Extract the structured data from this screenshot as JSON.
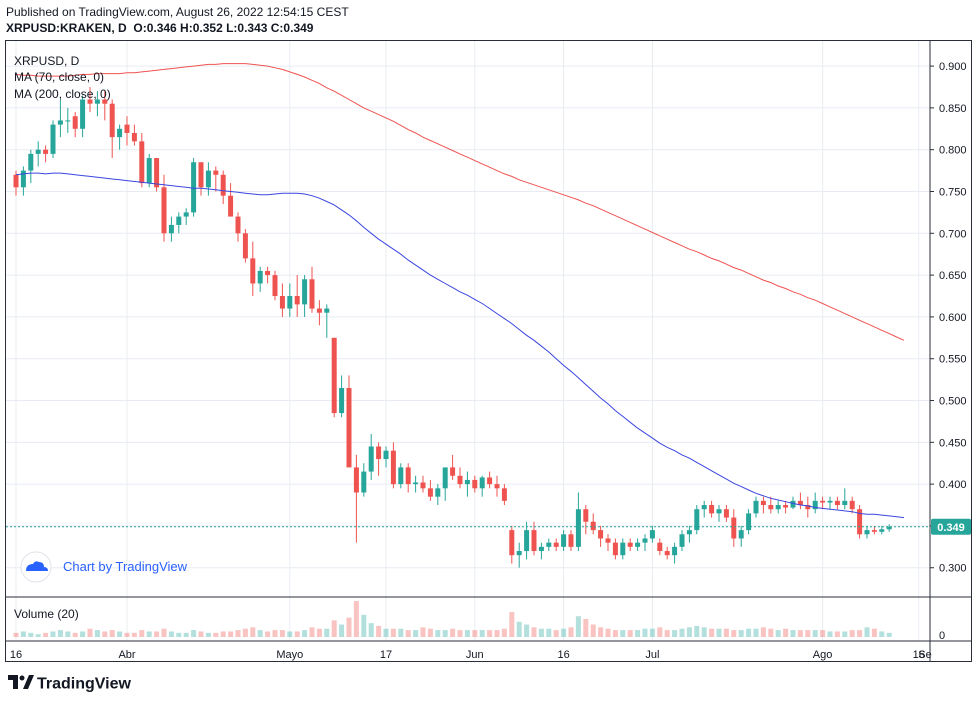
{
  "header": {
    "published": "Published on TradingView.com, August 26, 2022 12:54:15 CEST",
    "symbol": "XRPUSD:KRAKEN, D",
    "ohlc": "O:0.346 H:0.352 L:0.343 C:0.349"
  },
  "legend": {
    "title": "XRPUSD, D",
    "ma70": "MA (70, close, 0)",
    "ma200": "MA (200, close, 0)",
    "volume": "Volume (20)"
  },
  "watermark": "Chart by TradingView",
  "footer_brand": "TradingView",
  "colors": {
    "up": "#26a69a",
    "down": "#ef5350",
    "ma70": "#3a46e0",
    "ma200": "#ef5350",
    "last_price": "#26a69a",
    "grid": "#e8ecf2"
  },
  "chart_data": {
    "type": "candlestick",
    "title": "XRPUSD, D",
    "price_axis": {
      "ticks": [
        "0.900",
        "0.850",
        "0.800",
        "0.750",
        "0.700",
        "0.650",
        "0.600",
        "0.550",
        "0.500",
        "0.450",
        "0.400",
        "0.350",
        "0.300"
      ],
      "ylim": [
        0.265,
        0.93
      ],
      "last_price_label": "0.349",
      "last_price": 0.349
    },
    "volume_axis": {
      "ticks": [
        "0"
      ]
    },
    "x_axis": {
      "tick_labels": [
        "16",
        "Abr",
        "Mayo",
        "17",
        "Jun",
        "16",
        "Jul",
        "Ago",
        "16",
        "Se"
      ],
      "tick_indices": [
        0,
        15,
        37,
        50,
        62,
        74,
        86,
        109,
        122,
        135
      ]
    },
    "candles": [
      [
        0.77,
        0.775,
        0.745,
        0.755
      ],
      [
        0.755,
        0.78,
        0.745,
        0.775
      ],
      [
        0.775,
        0.8,
        0.76,
        0.795
      ],
      [
        0.795,
        0.81,
        0.78,
        0.8
      ],
      [
        0.8,
        0.805,
        0.785,
        0.795
      ],
      [
        0.795,
        0.835,
        0.79,
        0.83
      ],
      [
        0.83,
        0.86,
        0.815,
        0.835
      ],
      [
        0.835,
        0.85,
        0.82,
        0.835
      ],
      [
        0.84,
        0.845,
        0.815,
        0.825
      ],
      [
        0.825,
        0.865,
        0.815,
        0.86
      ],
      [
        0.86,
        0.875,
        0.845,
        0.855
      ],
      [
        0.855,
        0.87,
        0.84,
        0.86
      ],
      [
        0.86,
        0.87,
        0.835,
        0.855
      ],
      [
        0.855,
        0.86,
        0.79,
        0.815
      ],
      [
        0.815,
        0.83,
        0.8,
        0.825
      ],
      [
        0.83,
        0.84,
        0.805,
        0.82
      ],
      [
        0.82,
        0.83,
        0.805,
        0.81
      ],
      [
        0.81,
        0.82,
        0.755,
        0.76
      ],
      [
        0.76,
        0.795,
        0.755,
        0.79
      ],
      [
        0.79,
        0.79,
        0.75,
        0.755
      ],
      [
        0.755,
        0.77,
        0.69,
        0.7
      ],
      [
        0.7,
        0.72,
        0.69,
        0.71
      ],
      [
        0.71,
        0.725,
        0.7,
        0.72
      ],
      [
        0.72,
        0.73,
        0.71,
        0.725
      ],
      [
        0.725,
        0.79,
        0.72,
        0.785
      ],
      [
        0.785,
        0.785,
        0.745,
        0.755
      ],
      [
        0.755,
        0.785,
        0.745,
        0.775
      ],
      [
        0.775,
        0.78,
        0.75,
        0.77
      ],
      [
        0.77,
        0.775,
        0.735,
        0.745
      ],
      [
        0.745,
        0.76,
        0.72,
        0.72
      ],
      [
        0.72,
        0.725,
        0.69,
        0.7
      ],
      [
        0.7,
        0.705,
        0.665,
        0.67
      ],
      [
        0.67,
        0.69,
        0.625,
        0.64
      ],
      [
        0.64,
        0.66,
        0.63,
        0.655
      ],
      [
        0.655,
        0.66,
        0.64,
        0.65
      ],
      [
        0.65,
        0.655,
        0.62,
        0.625
      ],
      [
        0.625,
        0.64,
        0.6,
        0.61
      ],
      [
        0.61,
        0.64,
        0.6,
        0.625
      ],
      [
        0.625,
        0.65,
        0.6,
        0.615
      ],
      [
        0.615,
        0.65,
        0.6,
        0.645
      ],
      [
        0.645,
        0.66,
        0.605,
        0.61
      ],
      [
        0.61,
        0.62,
        0.59,
        0.605
      ],
      [
        0.605,
        0.615,
        0.575,
        0.61
      ],
      [
        0.575,
        0.575,
        0.48,
        0.485
      ],
      [
        0.485,
        0.53,
        0.48,
        0.515
      ],
      [
        0.515,
        0.53,
        0.42,
        0.42
      ],
      [
        0.42,
        0.435,
        0.33,
        0.39
      ],
      [
        0.39,
        0.425,
        0.385,
        0.415
      ],
      [
        0.415,
        0.46,
        0.405,
        0.445
      ],
      [
        0.445,
        0.45,
        0.41,
        0.43
      ],
      [
        0.43,
        0.445,
        0.42,
        0.44
      ],
      [
        0.44,
        0.45,
        0.395,
        0.4
      ],
      [
        0.4,
        0.425,
        0.395,
        0.42
      ],
      [
        0.42,
        0.425,
        0.39,
        0.4
      ],
      [
        0.4,
        0.41,
        0.39,
        0.402
      ],
      [
        0.402,
        0.41,
        0.39,
        0.395
      ],
      [
        0.395,
        0.405,
        0.38,
        0.385
      ],
      [
        0.385,
        0.4,
        0.375,
        0.395
      ],
      [
        0.395,
        0.415,
        0.38,
        0.42
      ],
      [
        0.42,
        0.435,
        0.405,
        0.41
      ],
      [
        0.41,
        0.42,
        0.395,
        0.4
      ],
      [
        0.4,
        0.415,
        0.385,
        0.405
      ],
      [
        0.405,
        0.41,
        0.39,
        0.395
      ],
      [
        0.395,
        0.41,
        0.385,
        0.408
      ],
      [
        0.408,
        0.415,
        0.395,
        0.4
      ],
      [
        0.4,
        0.41,
        0.385,
        0.395
      ],
      [
        0.395,
        0.4,
        0.375,
        0.38
      ],
      [
        0.345,
        0.35,
        0.305,
        0.315
      ],
      [
        0.315,
        0.33,
        0.3,
        0.32
      ],
      [
        0.32,
        0.355,
        0.31,
        0.345
      ],
      [
        0.345,
        0.355,
        0.315,
        0.32
      ],
      [
        0.32,
        0.33,
        0.31,
        0.325
      ],
      [
        0.325,
        0.335,
        0.32,
        0.33
      ],
      [
        0.33,
        0.335,
        0.32,
        0.325
      ],
      [
        0.325,
        0.345,
        0.32,
        0.34
      ],
      [
        0.34,
        0.345,
        0.32,
        0.325
      ],
      [
        0.325,
        0.39,
        0.32,
        0.37
      ],
      [
        0.37,
        0.375,
        0.34,
        0.355
      ],
      [
        0.355,
        0.365,
        0.34,
        0.345
      ],
      [
        0.345,
        0.35,
        0.325,
        0.335
      ],
      [
        0.335,
        0.34,
        0.32,
        0.33
      ],
      [
        0.33,
        0.335,
        0.31,
        0.315
      ],
      [
        0.315,
        0.335,
        0.31,
        0.33
      ],
      [
        0.33,
        0.335,
        0.32,
        0.325
      ],
      [
        0.325,
        0.335,
        0.32,
        0.33
      ],
      [
        0.33,
        0.34,
        0.32,
        0.335
      ],
      [
        0.335,
        0.35,
        0.33,
        0.345
      ],
      [
        0.33,
        0.335,
        0.315,
        0.32
      ],
      [
        0.32,
        0.325,
        0.31,
        0.315
      ],
      [
        0.315,
        0.33,
        0.305,
        0.325
      ],
      [
        0.325,
        0.345,
        0.32,
        0.34
      ],
      [
        0.34,
        0.35,
        0.33,
        0.345
      ],
      [
        0.345,
        0.375,
        0.34,
        0.37
      ],
      [
        0.37,
        0.38,
        0.36,
        0.375
      ],
      [
        0.375,
        0.38,
        0.36,
        0.365
      ],
      [
        0.365,
        0.375,
        0.355,
        0.37
      ],
      [
        0.37,
        0.375,
        0.355,
        0.36
      ],
      [
        0.36,
        0.37,
        0.325,
        0.335
      ],
      [
        0.335,
        0.35,
        0.325,
        0.345
      ],
      [
        0.345,
        0.37,
        0.34,
        0.365
      ],
      [
        0.365,
        0.385,
        0.36,
        0.38
      ],
      [
        0.38,
        0.385,
        0.365,
        0.375
      ],
      [
        0.375,
        0.385,
        0.365,
        0.37
      ],
      [
        0.37,
        0.38,
        0.365,
        0.375
      ],
      [
        0.375,
        0.38,
        0.365,
        0.372
      ],
      [
        0.372,
        0.385,
        0.37,
        0.38
      ],
      [
        0.38,
        0.39,
        0.37,
        0.375
      ],
      [
        0.375,
        0.385,
        0.36,
        0.37
      ],
      [
        0.37,
        0.39,
        0.365,
        0.38
      ],
      [
        0.38,
        0.385,
        0.37,
        0.378
      ],
      [
        0.378,
        0.385,
        0.37,
        0.38
      ],
      [
        0.38,
        0.385,
        0.37,
        0.375
      ],
      [
        0.375,
        0.395,
        0.37,
        0.38
      ],
      [
        0.38,
        0.385,
        0.365,
        0.37
      ],
      [
        0.37,
        0.375,
        0.335,
        0.34
      ],
      [
        0.34,
        0.35,
        0.335,
        0.345
      ],
      [
        0.345,
        0.35,
        0.34,
        0.343
      ],
      [
        0.343,
        0.35,
        0.34,
        0.346
      ],
      [
        0.346,
        0.352,
        0.343,
        0.349
      ]
    ],
    "volume": [
      3,
      4,
      3,
      2,
      3,
      4,
      5,
      4,
      3,
      4,
      6,
      5,
      4,
      5,
      4,
      3,
      3,
      5,
      4,
      4,
      6,
      4,
      3,
      3,
      5,
      4,
      3,
      3,
      4,
      4,
      5,
      6,
      7,
      5,
      4,
      5,
      5,
      4,
      4,
      5,
      7,
      6,
      6,
      12,
      9,
      14,
      26,
      16,
      10,
      8,
      6,
      6,
      6,
      5,
      5,
      7,
      6,
      5,
      5,
      6,
      5,
      5,
      5,
      5,
      5,
      5,
      6,
      18,
      11,
      9,
      7,
      6,
      6,
      5,
      6,
      7,
      15,
      13,
      9,
      7,
      6,
      5,
      5,
      5,
      5,
      6,
      6,
      7,
      5,
      5,
      6,
      7,
      8,
      7,
      6,
      6,
      6,
      5,
      5,
      6,
      6,
      7,
      6,
      5,
      6,
      5,
      5,
      5,
      5,
      5,
      4,
      4,
      4,
      5,
      5,
      7,
      6,
      4,
      3,
      3,
      3
    ],
    "series": [
      {
        "name": "MA (70, close, 0)",
        "values": [
          0.77,
          0.771,
          0.772,
          0.772,
          0.771,
          0.772,
          0.772,
          0.771,
          0.77,
          0.769,
          0.768,
          0.767,
          0.766,
          0.765,
          0.764,
          0.763,
          0.762,
          0.761,
          0.76,
          0.759,
          0.758,
          0.757,
          0.756,
          0.755,
          0.754,
          0.754,
          0.753,
          0.752,
          0.751,
          0.75,
          0.749,
          0.748,
          0.747,
          0.746,
          0.746,
          0.747,
          0.748,
          0.748,
          0.748,
          0.747,
          0.745,
          0.742,
          0.738,
          0.734,
          0.728,
          0.722,
          0.715,
          0.707,
          0.7,
          0.693,
          0.687,
          0.681,
          0.675,
          0.668,
          0.662,
          0.656,
          0.65,
          0.645,
          0.64,
          0.635,
          0.63,
          0.626,
          0.621,
          0.616,
          0.61,
          0.604,
          0.598,
          0.592,
          0.585,
          0.578,
          0.572,
          0.565,
          0.558,
          0.55,
          0.542,
          0.535,
          0.527,
          0.519,
          0.511,
          0.503,
          0.496,
          0.488,
          0.481,
          0.474,
          0.467,
          0.461,
          0.455,
          0.449,
          0.444,
          0.44,
          0.435,
          0.431,
          0.426,
          0.421,
          0.416,
          0.411,
          0.406,
          0.401,
          0.397,
          0.393,
          0.389,
          0.386,
          0.383,
          0.381,
          0.379,
          0.377,
          0.375,
          0.374,
          0.372,
          0.371,
          0.37,
          0.369,
          0.368,
          0.367,
          0.365,
          0.364,
          0.364,
          0.363,
          0.362,
          0.361,
          0.36
        ]
      },
      {
        "name": "MA (200, close, 0)",
        "values": [
          0.89,
          0.889,
          0.889,
          0.888,
          0.888,
          0.888,
          0.888,
          0.888,
          0.889,
          0.89,
          0.89,
          0.891,
          0.891,
          0.891,
          0.891,
          0.892,
          0.892,
          0.893,
          0.894,
          0.895,
          0.896,
          0.897,
          0.898,
          0.899,
          0.9,
          0.901,
          0.902,
          0.902,
          0.903,
          0.903,
          0.903,
          0.903,
          0.902,
          0.901,
          0.9,
          0.898,
          0.896,
          0.893,
          0.89,
          0.887,
          0.883,
          0.879,
          0.874,
          0.87,
          0.865,
          0.86,
          0.855,
          0.85,
          0.846,
          0.842,
          0.838,
          0.834,
          0.829,
          0.824,
          0.82,
          0.815,
          0.811,
          0.807,
          0.803,
          0.799,
          0.795,
          0.791,
          0.787,
          0.783,
          0.779,
          0.775,
          0.771,
          0.768,
          0.764,
          0.761,
          0.758,
          0.755,
          0.752,
          0.749,
          0.746,
          0.743,
          0.74,
          0.736,
          0.733,
          0.729,
          0.725,
          0.721,
          0.717,
          0.713,
          0.709,
          0.705,
          0.701,
          0.697,
          0.693,
          0.689,
          0.685,
          0.681,
          0.678,
          0.674,
          0.67,
          0.667,
          0.663,
          0.659,
          0.656,
          0.652,
          0.648,
          0.644,
          0.641,
          0.637,
          0.634,
          0.63,
          0.627,
          0.623,
          0.62,
          0.616,
          0.612,
          0.608,
          0.604,
          0.6,
          0.596,
          0.592,
          0.588,
          0.584,
          0.58,
          0.576,
          0.572
        ]
      }
    ]
  }
}
